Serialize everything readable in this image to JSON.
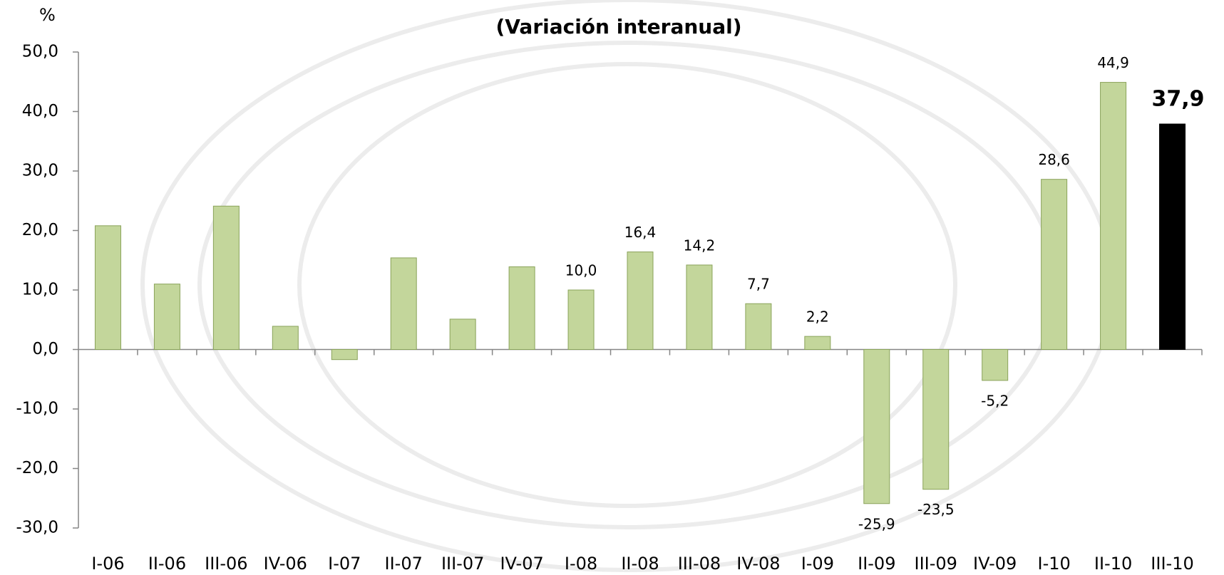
{
  "chart_data": {
    "type": "bar",
    "title": "(Variación interanual)",
    "y_label": "%",
    "categories": [
      "I-06",
      "II-06",
      "III-06",
      "IV-06",
      "I-07",
      "II-07",
      "III-07",
      "IV-07",
      "I-08",
      "II-08",
      "III-08",
      "IV-08",
      "I-09",
      "II-09",
      "III-09",
      "IV-09",
      "I-10",
      "II-10",
      "III-10"
    ],
    "values": [
      20.8,
      11.0,
      24.1,
      3.9,
      -1.7,
      15.4,
      5.1,
      13.9,
      10.0,
      16.4,
      14.2,
      7.7,
      2.2,
      -25.9,
      -23.5,
      -5.2,
      28.6,
      44.9,
      37.9
    ],
    "value_labels": [
      null,
      null,
      null,
      null,
      null,
      null,
      null,
      null,
      "10,0",
      "16,4",
      "14,2",
      "7,7",
      "2,2",
      "-25,9",
      "-23,5",
      "-5,2",
      "28,6",
      "44,9",
      "37,9"
    ],
    "colors": [
      "#c3d69b",
      "#c3d69b",
      "#c3d69b",
      "#c3d69b",
      "#c3d69b",
      "#c3d69b",
      "#c3d69b",
      "#c3d69b",
      "#c3d69b",
      "#c3d69b",
      "#c3d69b",
      "#c3d69b",
      "#c3d69b",
      "#c3d69b",
      "#c3d69b",
      "#c3d69b",
      "#c3d69b",
      "#c3d69b",
      "#000000"
    ],
    "value_label_colors": [
      "#000000",
      "#000000",
      "#000000",
      "#000000",
      "#000000",
      "#000000",
      "#000000",
      "#000000",
      "#000000",
      "#000000",
      "#000000",
      "#000000",
      "#000000",
      "#000000",
      "#000000",
      "#000000",
      "#000000",
      "#000000",
      "#ff0000"
    ],
    "ylim": [
      -30,
      50
    ],
    "yticks": [
      {
        "value": -30,
        "label": "-30,0"
      },
      {
        "value": -20,
        "label": "-20,0"
      },
      {
        "value": -10,
        "label": "-10,0"
      },
      {
        "value": 0,
        "label": "0,0"
      },
      {
        "value": 10,
        "label": "10,0"
      },
      {
        "value": 20,
        "label": "20,0"
      },
      {
        "value": 30,
        "label": "30,0"
      },
      {
        "value": 40,
        "label": "40,0"
      },
      {
        "value": 50,
        "label": "50,0"
      }
    ],
    "grid": false
  }
}
